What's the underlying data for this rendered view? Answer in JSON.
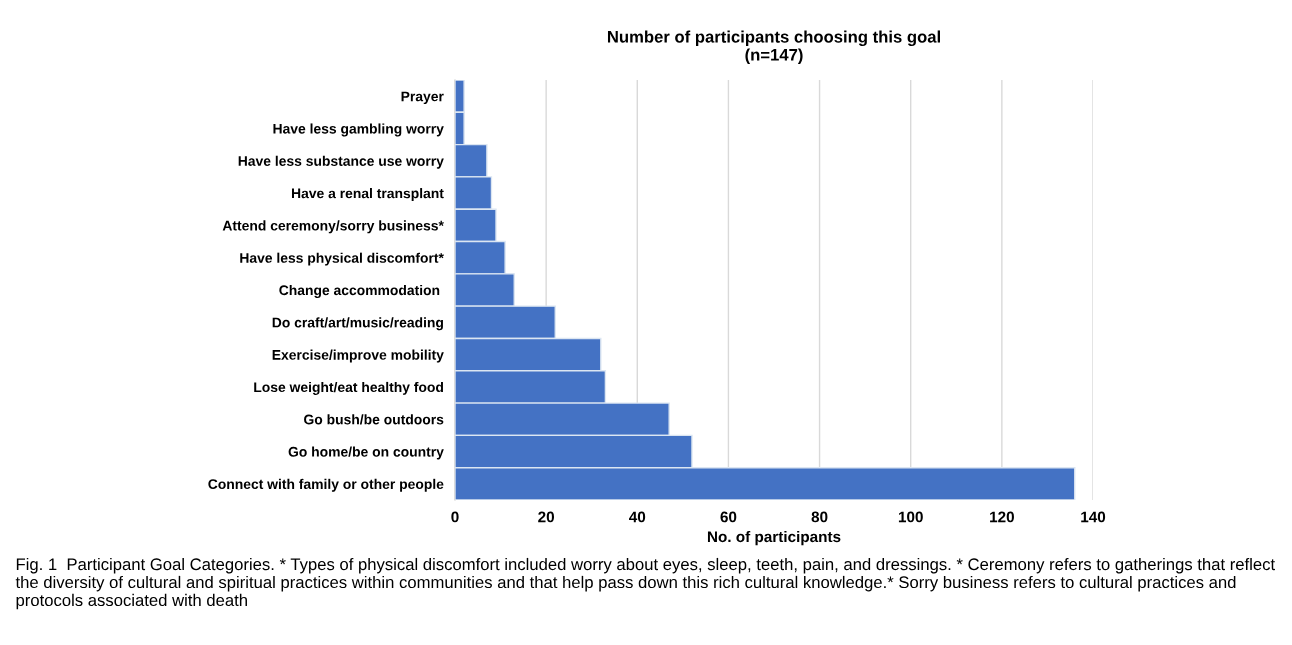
{
  "chart_data": {
    "type": "bar",
    "orientation": "horizontal",
    "title": "Number of participants choosing this goal\n(n=147)",
    "xlabel": "No. of participants",
    "categories": [
      "Prayer",
      "Have less gambling worry",
      "Have less substance use worry",
      "Have a renal transplant",
      "Attend ceremony/sorry business*",
      "Have less physical discomfort*",
      "Change accommodation ",
      "Do craft/art/music/reading",
      "Exercise/improve mobility",
      "Lose weight/eat healthy food",
      "Go bush/be outdoors",
      "Go home/be on country",
      "Connect with family or other people"
    ],
    "values": [
      2,
      2,
      7,
      8,
      9,
      11,
      13,
      22,
      32,
      33,
      47,
      52,
      136
    ],
    "color": "#4472c4",
    "xlim": [
      0,
      140
    ],
    "xticks": [
      0,
      20,
      40,
      60,
      80,
      100,
      120,
      140
    ],
    "grid": "x",
    "annotations": [
      "Fig. 1  Participant Goal Categories. * Types of physical discomfort included worry about eyes, sleep, teeth, pain, and dressings. * Ceremony refers to gatherings that reflect the diversity of cultural and spiritual practices within communities and that help pass down this rich cultural knowledge.* Sorry business refers to cultural practices and protocols associated with death"
    ]
  }
}
